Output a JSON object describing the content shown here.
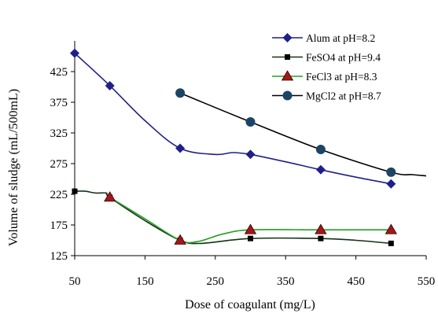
{
  "chart_data": {
    "type": "line",
    "xlabel": "Dose of coagulant (mg/L)",
    "ylabel": "Volume of sludge (mL/500mL)",
    "xlim": [
      50,
      550
    ],
    "ylim": [
      125,
      475
    ],
    "x_ticks": [
      "50",
      "150",
      "250",
      "350",
      "450",
      "550"
    ],
    "y_ticks": [
      "125",
      "175",
      "225",
      "275",
      "325",
      "375",
      "425"
    ],
    "grid": false,
    "legend_position": "top-right",
    "series": [
      {
        "name": "Alum at pH=8.2",
        "color": "#1f1f8c",
        "marker": "diamond",
        "points": [
          [
            50,
            455
          ],
          [
            100,
            402
          ],
          [
            200,
            300
          ],
          [
            300,
            290
          ],
          [
            400,
            265
          ],
          [
            500,
            242
          ]
        ],
        "curve": [
          [
            50,
            455
          ],
          [
            100,
            402
          ],
          [
            150,
            345
          ],
          [
            200,
            300
          ],
          [
            250,
            290
          ],
          [
            275,
            293
          ],
          [
            300,
            290
          ],
          [
            350,
            278
          ],
          [
            400,
            265
          ],
          [
            450,
            253
          ],
          [
            500,
            242
          ]
        ]
      },
      {
        "name": "FeSO4 at pH=9.4",
        "color": "#143214",
        "marker": "square",
        "points": [
          [
            50,
            230
          ],
          [
            100,
            220
          ],
          [
            200,
            150
          ],
          [
            300,
            153
          ],
          [
            400,
            153
          ],
          [
            500,
            145
          ]
        ],
        "curve": [
          [
            50,
            230
          ],
          [
            65,
            230
          ],
          [
            80,
            227
          ],
          [
            95,
            227
          ],
          [
            100,
            220
          ],
          [
            150,
            182
          ],
          [
            200,
            150
          ],
          [
            230,
            145
          ],
          [
            300,
            153
          ],
          [
            400,
            153
          ],
          [
            450,
            150
          ],
          [
            500,
            145
          ]
        ]
      },
      {
        "name": "FeCl3 at pH=8.3",
        "color": "#22a022",
        "marker": "triangle",
        "points": [
          [
            100,
            220
          ],
          [
            200,
            150
          ],
          [
            300,
            167
          ],
          [
            400,
            167
          ],
          [
            500,
            167
          ]
        ],
        "curve": [
          [
            100,
            220
          ],
          [
            150,
            185
          ],
          [
            200,
            150
          ],
          [
            225,
            148
          ],
          [
            260,
            160
          ],
          [
            300,
            167
          ],
          [
            400,
            167
          ],
          [
            500,
            167
          ]
        ]
      },
      {
        "name": "MgCl2 at pH=8.7",
        "color": "#000000",
        "marker": "circle",
        "points": [
          [
            200,
            390
          ],
          [
            300,
            343
          ],
          [
            400,
            298
          ],
          [
            500,
            261
          ]
        ],
        "curve": [
          [
            200,
            390
          ],
          [
            300,
            343
          ],
          [
            400,
            298
          ],
          [
            500,
            261
          ],
          [
            530,
            257
          ],
          [
            550,
            255
          ]
        ]
      }
    ]
  }
}
